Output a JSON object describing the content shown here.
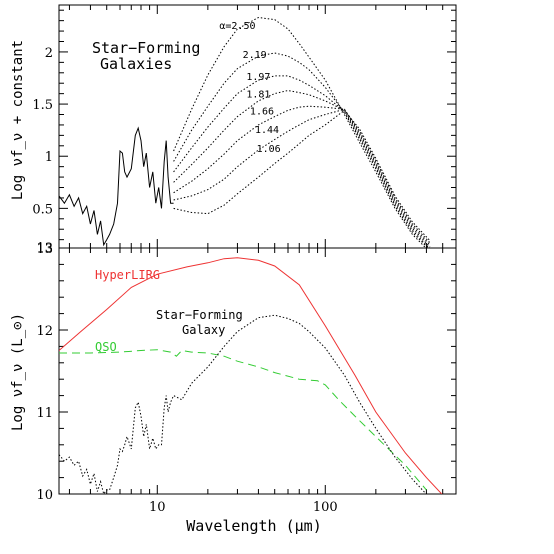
{
  "chart_data": [
    {
      "type": "line",
      "panel": "top",
      "ylabel": "Log νf_ν + constant",
      "xscale": "log",
      "xlim": [
        2.6,
        600
      ],
      "ylim": [
        0.12,
        2.45
      ],
      "yticks": [
        0.5,
        1,
        1.5,
        2
      ],
      "annotation": "Star−Forming\nGalaxies",
      "alpha_labels": [
        "α=2.50",
        "2.19",
        "1.97",
        "1.81",
        "1.66",
        "1.44",
        "1.06"
      ],
      "series": [
        {
          "name": "α=2.50",
          "x": [
            12.5,
            16,
            20,
            25,
            30,
            40,
            50,
            60,
            70,
            80,
            100,
            130,
            160,
            200,
            260,
            330,
            420
          ],
          "y": [
            1.05,
            1.45,
            1.78,
            2.05,
            2.22,
            2.33,
            2.31,
            2.22,
            2.08,
            1.95,
            1.73,
            1.4,
            1.13,
            0.85,
            0.5,
            0.25,
            0.08
          ]
        },
        {
          "name": "2.19",
          "x": [
            12.5,
            16,
            20,
            25,
            30,
            40,
            50,
            60,
            70,
            80,
            100,
            130,
            160,
            200,
            260,
            330,
            420
          ],
          "y": [
            0.95,
            1.25,
            1.48,
            1.7,
            1.84,
            1.96,
            1.99,
            1.96,
            1.9,
            1.83,
            1.66,
            1.42,
            1.16,
            0.88,
            0.52,
            0.27,
            0.1
          ]
        },
        {
          "name": "1.97",
          "x": [
            12.5,
            16,
            20,
            25,
            30,
            40,
            50,
            60,
            70,
            80,
            100,
            130,
            160,
            200,
            260,
            330,
            420
          ],
          "y": [
            0.85,
            1.08,
            1.28,
            1.46,
            1.6,
            1.73,
            1.77,
            1.77,
            1.73,
            1.68,
            1.58,
            1.43,
            1.18,
            0.9,
            0.54,
            0.29,
            0.11
          ]
        },
        {
          "name": "1.81",
          "x": [
            12.5,
            16,
            20,
            25,
            30,
            40,
            50,
            60,
            70,
            80,
            100,
            130,
            160,
            200,
            260,
            330,
            420
          ],
          "y": [
            0.75,
            0.92,
            1.08,
            1.25,
            1.38,
            1.53,
            1.6,
            1.63,
            1.61,
            1.59,
            1.53,
            1.44,
            1.2,
            0.92,
            0.56,
            0.31,
            0.13
          ]
        },
        {
          "name": "1.66",
          "x": [
            12.5,
            16,
            20,
            25,
            30,
            40,
            50,
            60,
            70,
            80,
            100,
            130,
            160,
            200,
            260,
            330,
            420
          ],
          "y": [
            0.65,
            0.76,
            0.88,
            1.02,
            1.15,
            1.3,
            1.38,
            1.44,
            1.47,
            1.48,
            1.47,
            1.45,
            1.22,
            0.94,
            0.58,
            0.33,
            0.15
          ]
        },
        {
          "name": "1.44",
          "x": [
            12.5,
            16,
            20,
            25,
            30,
            40,
            50,
            60,
            70,
            80,
            100,
            130,
            160,
            200,
            260,
            330,
            420
          ],
          "y": [
            0.58,
            0.62,
            0.68,
            0.78,
            0.9,
            1.06,
            1.16,
            1.24,
            1.3,
            1.35,
            1.4,
            1.45,
            1.24,
            0.96,
            0.6,
            0.35,
            0.17
          ]
        },
        {
          "name": "1.06",
          "x": [
            12.5,
            16,
            20,
            25,
            30,
            40,
            50,
            60,
            70,
            80,
            100,
            130,
            160,
            200,
            260,
            330,
            420
          ],
          "y": [
            0.5,
            0.46,
            0.45,
            0.53,
            0.64,
            0.8,
            0.93,
            1.03,
            1.12,
            1.2,
            1.3,
            1.44,
            1.26,
            0.98,
            0.62,
            0.37,
            0.19
          ]
        }
      ],
      "common_mir": {
        "x": [
          2.6,
          2.8,
          3.0,
          3.2,
          3.4,
          3.6,
          3.8,
          4.0,
          4.2,
          4.4,
          4.6,
          4.8,
          5.0,
          5.2,
          5.5,
          5.8,
          6.0,
          6.2,
          6.4,
          6.6,
          7.0,
          7.4,
          7.7,
          8.0,
          8.3,
          8.6,
          9.0,
          9.4,
          9.8,
          10.2,
          10.6,
          11.0,
          11.3,
          11.6,
          12.0,
          12.5
        ],
        "y": [
          0.62,
          0.55,
          0.63,
          0.52,
          0.6,
          0.45,
          0.52,
          0.35,
          0.48,
          0.25,
          0.38,
          0.15,
          0.2,
          0.25,
          0.35,
          0.55,
          1.05,
          1.03,
          0.85,
          0.8,
          0.88,
          1.2,
          1.27,
          1.15,
          0.9,
          1.03,
          0.7,
          0.85,
          0.55,
          0.7,
          0.5,
          0.95,
          1.15,
          0.8,
          0.55,
          0.55
        ]
      }
    },
    {
      "type": "line",
      "panel": "bottom",
      "xlabel": "Wavelength (μm)",
      "ylabel": "Log νf_ν (L_⊙)",
      "xscale": "log",
      "xlim": [
        2.6,
        600
      ],
      "ylim": [
        10,
        13
      ],
      "yticks": [
        10,
        11,
        12,
        13
      ],
      "xticks": [
        10,
        100
      ],
      "xtick_labels": [
        "10",
        "100"
      ],
      "series": [
        {
          "name": "HyperLIRG",
          "color": "#ee3333",
          "style": "solid",
          "x": [
            2.6,
            3.5,
            5,
            7,
            10,
            15,
            20,
            25,
            30,
            40,
            50,
            70,
            100,
            150,
            200,
            300,
            400,
            520
          ],
          "y": [
            11.75,
            11.98,
            12.25,
            12.52,
            12.68,
            12.77,
            12.82,
            12.87,
            12.88,
            12.85,
            12.78,
            12.55,
            12.05,
            11.45,
            11.0,
            10.5,
            10.2,
            9.95
          ]
        },
        {
          "name": "QSO",
          "color": "#33cc33",
          "style": "dashed",
          "x": [
            2.6,
            4,
            6,
            8,
            10,
            12,
            13,
            14,
            16,
            20,
            25,
            30,
            40,
            50,
            70,
            90,
            100,
            120,
            150,
            200,
            300,
            400
          ],
          "y": [
            11.72,
            11.72,
            11.73,
            11.75,
            11.76,
            11.73,
            11.68,
            11.75,
            11.73,
            11.72,
            11.68,
            11.62,
            11.55,
            11.48,
            11.4,
            11.38,
            11.33,
            11.15,
            10.95,
            10.7,
            10.35,
            10.05
          ]
        },
        {
          "name": "Star−Forming Galaxy",
          "color": "#000000",
          "style": "dotted",
          "x": [
            2.6,
            2.8,
            3.0,
            3.2,
            3.4,
            3.6,
            3.8,
            4.0,
            4.2,
            4.4,
            4.6,
            4.8,
            5.0,
            5.2,
            5.5,
            5.8,
            6.0,
            6.2,
            6.4,
            6.6,
            7.0,
            7.4,
            7.7,
            8.0,
            8.3,
            8.6,
            9.0,
            9.4,
            9.8,
            10.2,
            10.6,
            11.0,
            11.3,
            11.6,
            12.0,
            12.5,
            14,
            16,
            20,
            25,
            30,
            40,
            50,
            60,
            70,
            80,
            100,
            130,
            160,
            200,
            260,
            330,
            420
          ],
          "y": [
            10.48,
            10.4,
            10.45,
            10.35,
            10.4,
            10.22,
            10.3,
            10.12,
            10.25,
            10.03,
            10.15,
            10.0,
            10.05,
            10.05,
            10.2,
            10.35,
            10.55,
            10.52,
            10.6,
            10.7,
            10.55,
            11.05,
            11.12,
            10.95,
            10.7,
            10.85,
            10.55,
            10.68,
            10.55,
            10.6,
            10.6,
            11.05,
            11.2,
            11.0,
            11.12,
            11.2,
            11.15,
            11.35,
            11.55,
            11.8,
            11.98,
            12.15,
            12.18,
            12.14,
            12.08,
            11.98,
            11.78,
            11.45,
            11.12,
            10.8,
            10.45,
            10.18,
            9.95
          ]
        }
      ],
      "labels": {
        "hyper": "HyperLIRG",
        "qso": "QSO",
        "sfg1": "Star−Forming",
        "sfg2": "Galaxy"
      }
    }
  ]
}
